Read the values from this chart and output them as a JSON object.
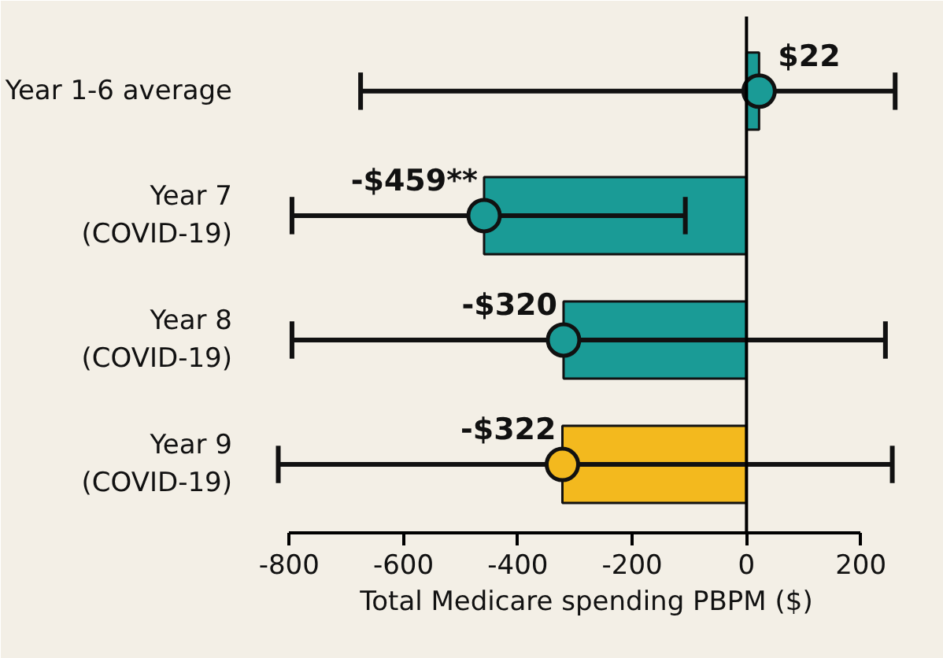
{
  "chart_data": {
    "type": "bar",
    "orientation": "horizontal",
    "xlabel": "Total Medicare spending PBPM ($)",
    "categories": [
      "Year 1-6 average",
      "Year 7\n(COVID-19)",
      "Year 8\n(COVID-19)",
      "Year 9\n(COVID-19)"
    ],
    "series": [
      {
        "values": [
          22,
          -459,
          -320,
          -322
        ],
        "colors": [
          "#1a9b96",
          "#1a9b96",
          "#1a9b96",
          "#f3b91e"
        ],
        "errors": [
          [
            -675,
            260
          ],
          [
            -795,
            -107
          ],
          [
            -795,
            243
          ],
          [
            -819,
            255
          ]
        ],
        "value_labels": [
          "$22",
          "-$459**",
          "-$320",
          "-$322"
        ]
      },
      {
        "type": "scatter",
        "values": [
          22,
          -459,
          -320,
          -322
        ],
        "colors": [
          "#1a9b96",
          "#1a9b96",
          "#1a9b96",
          "#f3b91e"
        ],
        "marker": "circle"
      }
    ],
    "xlim": [
      -850,
      290
    ],
    "xticks": [
      -800,
      -600,
      -400,
      -200,
      0,
      200
    ],
    "ref_lines": [
      {
        "axis": "x",
        "value": 0,
        "color": "#000000"
      }
    ],
    "grid": false
  }
}
